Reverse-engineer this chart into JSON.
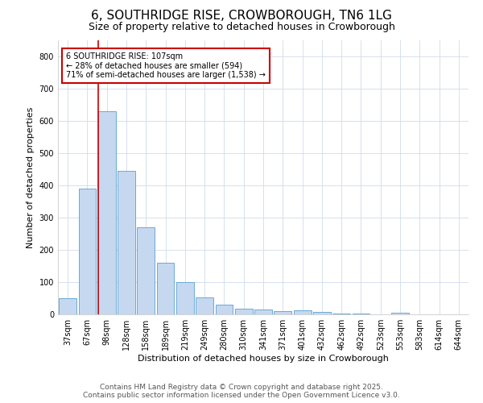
{
  "title": "6, SOUTHRIDGE RISE, CROWBOROUGH, TN6 1LG",
  "subtitle": "Size of property relative to detached houses in Crowborough",
  "xlabel": "Distribution of detached houses by size in Crowborough",
  "ylabel": "Number of detached properties",
  "categories": [
    "37sqm",
    "67sqm",
    "98sqm",
    "128sqm",
    "158sqm",
    "189sqm",
    "219sqm",
    "249sqm",
    "280sqm",
    "310sqm",
    "341sqm",
    "371sqm",
    "401sqm",
    "432sqm",
    "462sqm",
    "492sqm",
    "523sqm",
    "553sqm",
    "583sqm",
    "614sqm",
    "644sqm"
  ],
  "values": [
    50,
    390,
    630,
    445,
    270,
    160,
    100,
    52,
    30,
    18,
    15,
    10,
    13,
    8,
    3,
    2,
    1,
    4,
    1,
    1,
    1
  ],
  "bar_color": "#c5d8f0",
  "bar_edge_color": "#6aaad4",
  "red_line_index": 2,
  "red_line_color": "#cc0000",
  "annotation_text": "6 SOUTHRIDGE RISE: 107sqm\n← 28% of detached houses are smaller (594)\n71% of semi-detached houses are larger (1,538) →",
  "annotation_box_color": "#ffffff",
  "annotation_box_edge": "#cc0000",
  "ylim": [
    0,
    850
  ],
  "yticks": [
    0,
    100,
    200,
    300,
    400,
    500,
    600,
    700,
    800
  ],
  "footnote": "Contains HM Land Registry data © Crown copyright and database right 2025.\nContains public sector information licensed under the Open Government Licence v3.0.",
  "bg_color": "#ffffff",
  "plot_bg_color": "#ffffff",
  "grid_color": "#d0dce8",
  "title_fontsize": 11,
  "subtitle_fontsize": 9,
  "label_fontsize": 8,
  "tick_fontsize": 7,
  "annot_fontsize": 7,
  "footnote_fontsize": 6.5
}
